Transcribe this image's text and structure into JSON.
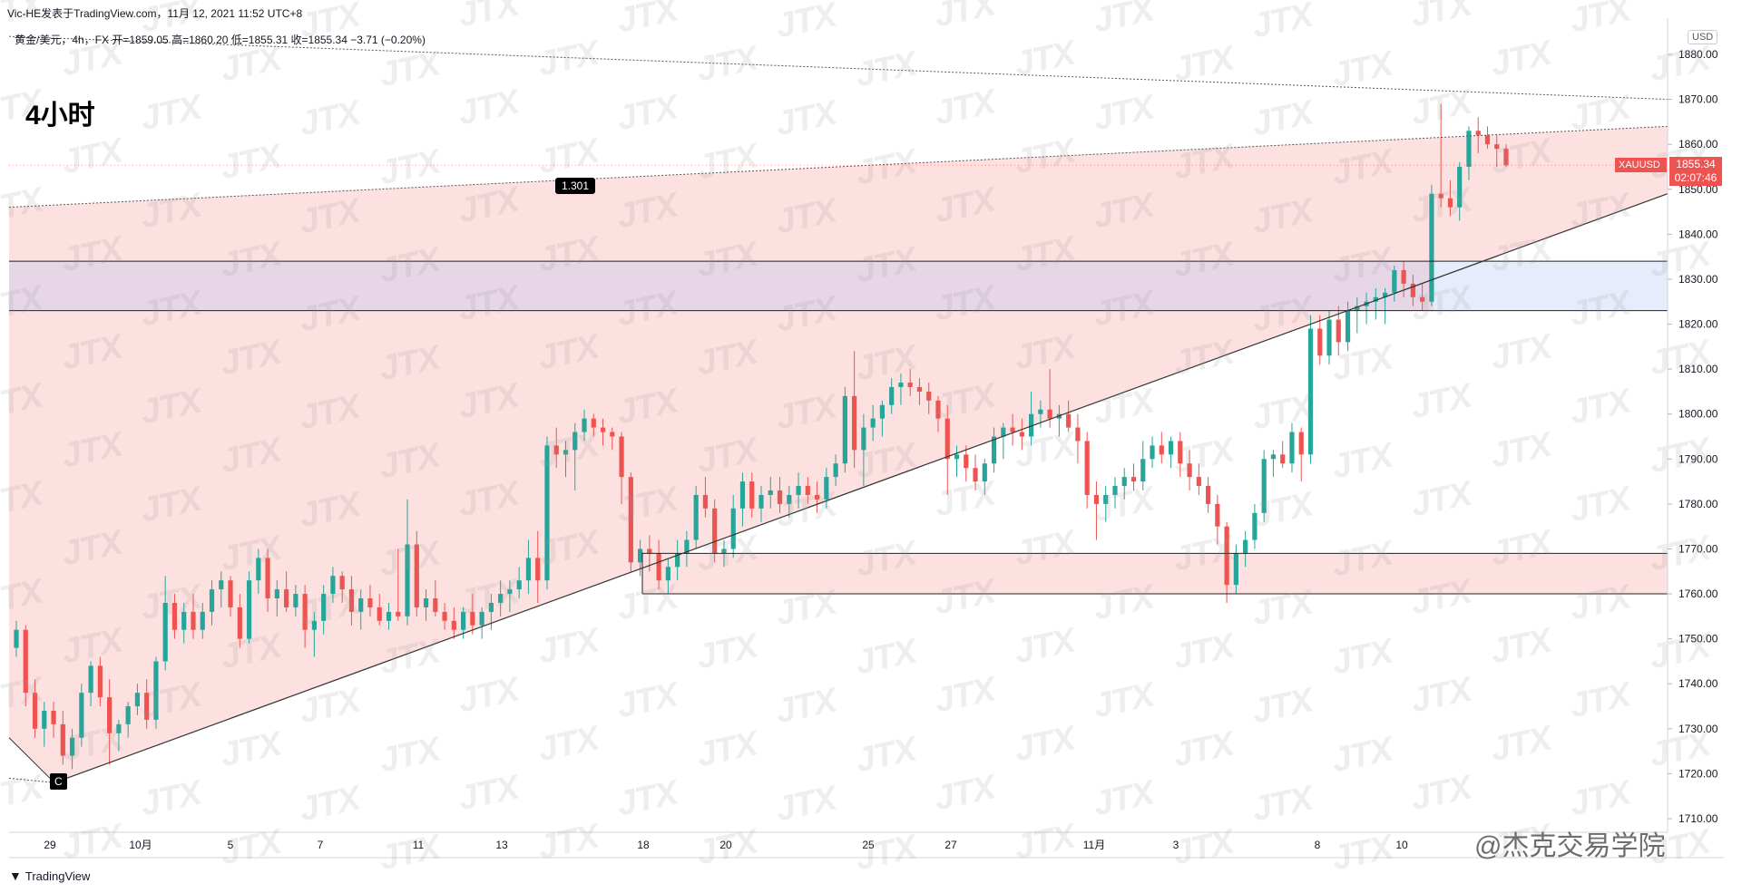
{
  "header": {
    "text": "Vic-HE发表于TradingView.com，11月 12, 2021 11:52 UTC+8"
  },
  "legend": {
    "text": "黄金/美元，4h，FX  开=1859.05  高=1860.20  低=1855.31  收=1855.34  −3.71 (−0.20%)"
  },
  "timeframe_label": "4小时",
  "currency_badge": "USD",
  "symbol_tag": "XAUUSD",
  "price_tag": {
    "price": "1855.34",
    "countdown": "02:07:46"
  },
  "annotations": {
    "ratio": "1.301",
    "wave": "C"
  },
  "footer": {
    "brand": "TradingView"
  },
  "credit": "@杰克交易学院",
  "watermark": "JTX",
  "colors": {
    "up": "#26a69a",
    "down": "#ef5350",
    "zone": "#fde0e0",
    "zone_purple": "#e6d6e6",
    "zone_blue": "#e6ecfb"
  },
  "chart_data": {
    "type": "candlestick",
    "symbol": "XAUUSD",
    "timeframe": "4h",
    "ylim": [
      1706,
      1887
    ],
    "y_ticks": [
      1710,
      1720,
      1730,
      1740,
      1750,
      1760,
      1770,
      1780,
      1790,
      1800,
      1810,
      1820,
      1830,
      1840,
      1850,
      1860,
      1870,
      1880
    ],
    "x_ticks": [
      "29",
      "10月",
      "5",
      "7",
      "11",
      "13",
      "18",
      "20",
      "25",
      "27",
      "11月",
      "3",
      "8",
      "10"
    ],
    "candles": [
      [
        1748,
        1754,
        1746,
        1752
      ],
      [
        1752,
        1753,
        1735,
        1738
      ],
      [
        1738,
        1741,
        1728,
        1730
      ],
      [
        1730,
        1736,
        1726,
        1734
      ],
      [
        1734,
        1736,
        1728,
        1731
      ],
      [
        1731,
        1734,
        1722,
        1724
      ],
      [
        1724,
        1730,
        1721,
        1728
      ],
      [
        1728,
        1740,
        1726,
        1738
      ],
      [
        1738,
        1745,
        1735,
        1744
      ],
      [
        1744,
        1746,
        1735,
        1737
      ],
      [
        1737,
        1741,
        1722,
        1729
      ],
      [
        1729,
        1732,
        1725,
        1731
      ],
      [
        1731,
        1736,
        1728,
        1735
      ],
      [
        1735,
        1740,
        1733,
        1738
      ],
      [
        1738,
        1741,
        1730,
        1732
      ],
      [
        1732,
        1746,
        1730,
        1745
      ],
      [
        1745,
        1764,
        1743,
        1758
      ],
      [
        1758,
        1760,
        1750,
        1752
      ],
      [
        1752,
        1758,
        1749,
        1756
      ],
      [
        1756,
        1760,
        1750,
        1752
      ],
      [
        1752,
        1758,
        1750,
        1756
      ],
      [
        1756,
        1763,
        1753,
        1761
      ],
      [
        1761,
        1765,
        1757,
        1763
      ],
      [
        1763,
        1764,
        1755,
        1757
      ],
      [
        1757,
        1760,
        1748,
        1750
      ],
      [
        1750,
        1765,
        1749,
        1763
      ],
      [
        1763,
        1770,
        1760,
        1768
      ],
      [
        1768,
        1770,
        1756,
        1759
      ],
      [
        1759,
        1763,
        1755,
        1761
      ],
      [
        1761,
        1765,
        1756,
        1757
      ],
      [
        1757,
        1762,
        1755,
        1760
      ],
      [
        1760,
        1762,
        1748,
        1752
      ],
      [
        1752,
        1756,
        1746,
        1754
      ],
      [
        1754,
        1762,
        1751,
        1760
      ],
      [
        1760,
        1766,
        1758,
        1764
      ],
      [
        1764,
        1765,
        1758,
        1761
      ],
      [
        1761,
        1764,
        1753,
        1756
      ],
      [
        1756,
        1761,
        1752,
        1759
      ],
      [
        1759,
        1762,
        1755,
        1757
      ],
      [
        1757,
        1760,
        1753,
        1754
      ],
      [
        1754,
        1758,
        1752,
        1756
      ],
      [
        1756,
        1770,
        1754,
        1755
      ],
      [
        1755,
        1781,
        1753,
        1771
      ],
      [
        1771,
        1774,
        1755,
        1757
      ],
      [
        1757,
        1761,
        1754,
        1759
      ],
      [
        1759,
        1763,
        1755,
        1756
      ],
      [
        1756,
        1758,
        1752,
        1754
      ],
      [
        1754,
        1757,
        1750,
        1752
      ],
      [
        1752,
        1757,
        1750,
        1756
      ],
      [
        1756,
        1760,
        1751,
        1753
      ],
      [
        1753,
        1757,
        1750,
        1756
      ],
      [
        1756,
        1760,
        1752,
        1758
      ],
      [
        1758,
        1763,
        1755,
        1760
      ],
      [
        1760,
        1763,
        1756,
        1761
      ],
      [
        1761,
        1766,
        1759,
        1763
      ],
      [
        1763,
        1772,
        1760,
        1768
      ],
      [
        1768,
        1774,
        1758,
        1763
      ],
      [
        1763,
        1795,
        1761,
        1793
      ],
      [
        1793,
        1797,
        1788,
        1791
      ],
      [
        1791,
        1794,
        1786,
        1792
      ],
      [
        1792,
        1798,
        1783,
        1796
      ],
      [
        1796,
        1801,
        1794,
        1799
      ],
      [
        1799,
        1800,
        1795,
        1797
      ],
      [
        1797,
        1799,
        1793,
        1796
      ],
      [
        1796,
        1797,
        1792,
        1795
      ],
      [
        1795,
        1796,
        1780,
        1786
      ],
      [
        1786,
        1787,
        1765,
        1767
      ],
      [
        1767,
        1772,
        1764,
        1770
      ],
      [
        1770,
        1773,
        1765,
        1769
      ],
      [
        1769,
        1772,
        1761,
        1763
      ],
      [
        1763,
        1768,
        1760,
        1766
      ],
      [
        1766,
        1772,
        1763,
        1769
      ],
      [
        1769,
        1774,
        1766,
        1772
      ],
      [
        1772,
        1784,
        1770,
        1782
      ],
      [
        1782,
        1786,
        1777,
        1779
      ],
      [
        1779,
        1781,
        1767,
        1769
      ],
      [
        1769,
        1772,
        1766,
        1770
      ],
      [
        1770,
        1782,
        1768,
        1779
      ],
      [
        1779,
        1787,
        1775,
        1785
      ],
      [
        1785,
        1787,
        1777,
        1779
      ],
      [
        1779,
        1784,
        1776,
        1782
      ],
      [
        1782,
        1786,
        1779,
        1783
      ],
      [
        1783,
        1786,
        1778,
        1780
      ],
      [
        1780,
        1784,
        1777,
        1782
      ],
      [
        1782,
        1787,
        1779,
        1784
      ],
      [
        1784,
        1786,
        1780,
        1782
      ],
      [
        1782,
        1785,
        1778,
        1781
      ],
      [
        1781,
        1788,
        1779,
        1786
      ],
      [
        1786,
        1791,
        1784,
        1789
      ],
      [
        1789,
        1806,
        1787,
        1804
      ],
      [
        1804,
        1814,
        1788,
        1792
      ],
      [
        1792,
        1800,
        1784,
        1797
      ],
      [
        1797,
        1802,
        1794,
        1799
      ],
      [
        1799,
        1803,
        1795,
        1802
      ],
      [
        1802,
        1808,
        1800,
        1806
      ],
      [
        1806,
        1809,
        1802,
        1807
      ],
      [
        1807,
        1810,
        1804,
        1806
      ],
      [
        1806,
        1808,
        1802,
        1805
      ],
      [
        1805,
        1807,
        1800,
        1803
      ],
      [
        1803,
        1804,
        1796,
        1799
      ],
      [
        1799,
        1802,
        1782,
        1790
      ],
      [
        1790,
        1793,
        1786,
        1791
      ],
      [
        1791,
        1793,
        1785,
        1788
      ],
      [
        1788,
        1791,
        1783,
        1785
      ],
      [
        1785,
        1790,
        1782,
        1789
      ],
      [
        1789,
        1797,
        1787,
        1795
      ],
      [
        1795,
        1798,
        1790,
        1797
      ],
      [
        1797,
        1800,
        1793,
        1796
      ],
      [
        1796,
        1799,
        1792,
        1795
      ],
      [
        1795,
        1805,
        1793,
        1800
      ],
      [
        1800,
        1803,
        1797,
        1801
      ],
      [
        1801,
        1810,
        1797,
        1799
      ],
      [
        1799,
        1802,
        1795,
        1800
      ],
      [
        1800,
        1803,
        1796,
        1797
      ],
      [
        1797,
        1800,
        1789,
        1794
      ],
      [
        1794,
        1796,
        1779,
        1782
      ],
      [
        1782,
        1785,
        1772,
        1780
      ],
      [
        1780,
        1784,
        1776,
        1782
      ],
      [
        1782,
        1786,
        1779,
        1784
      ],
      [
        1784,
        1788,
        1781,
        1786
      ],
      [
        1786,
        1789,
        1783,
        1785
      ],
      [
        1785,
        1794,
        1783,
        1790
      ],
      [
        1790,
        1795,
        1788,
        1793
      ],
      [
        1793,
        1796,
        1789,
        1791
      ],
      [
        1791,
        1795,
        1788,
        1794
      ],
      [
        1794,
        1796,
        1786,
        1789
      ],
      [
        1789,
        1792,
        1783,
        1786
      ],
      [
        1786,
        1789,
        1782,
        1784
      ],
      [
        1784,
        1786,
        1778,
        1780
      ],
      [
        1780,
        1782,
        1771,
        1775
      ],
      [
        1775,
        1776,
        1758,
        1762
      ],
      [
        1762,
        1771,
        1760,
        1769
      ],
      [
        1769,
        1774,
        1766,
        1772
      ],
      [
        1772,
        1780,
        1770,
        1778
      ],
      [
        1778,
        1792,
        1776,
        1790
      ],
      [
        1790,
        1792,
        1786,
        1791
      ],
      [
        1791,
        1794,
        1788,
        1789
      ],
      [
        1789,
        1798,
        1787,
        1796
      ],
      [
        1796,
        1797,
        1785,
        1791
      ],
      [
        1791,
        1822,
        1789,
        1819
      ],
      [
        1819,
        1822,
        1811,
        1813
      ],
      [
        1813,
        1823,
        1811,
        1821
      ],
      [
        1821,
        1824,
        1813,
        1816
      ],
      [
        1816,
        1825,
        1814,
        1823
      ],
      [
        1823,
        1826,
        1818,
        1824
      ],
      [
        1824,
        1827,
        1820,
        1825
      ],
      [
        1825,
        1828,
        1821,
        1826
      ],
      [
        1826,
        1828,
        1820,
        1827
      ],
      [
        1827,
        1833,
        1825,
        1832
      ],
      [
        1832,
        1834,
        1826,
        1829
      ],
      [
        1829,
        1831,
        1824,
        1826
      ],
      [
        1826,
        1829,
        1823,
        1825
      ],
      [
        1825,
        1851,
        1824,
        1849
      ],
      [
        1849,
        1869,
        1846,
        1848
      ],
      [
        1848,
        1852,
        1844,
        1846
      ],
      [
        1846,
        1856,
        1843,
        1855
      ],
      [
        1855,
        1864,
        1852,
        1863
      ],
      [
        1863,
        1866,
        1858,
        1862
      ],
      [
        1862,
        1864,
        1859,
        1860
      ],
      [
        1860,
        1862,
        1855,
        1859
      ],
      [
        1859,
        1860,
        1855,
        1855.34
      ]
    ],
    "zones": [
      {
        "name": "upper-wedge",
        "kind": "triangle"
      },
      {
        "name": "resistance-band",
        "from": 1823,
        "to": 1834
      },
      {
        "name": "support-band",
        "from": 1760,
        "to": 1769
      }
    ],
    "last_price": 1855.34
  }
}
